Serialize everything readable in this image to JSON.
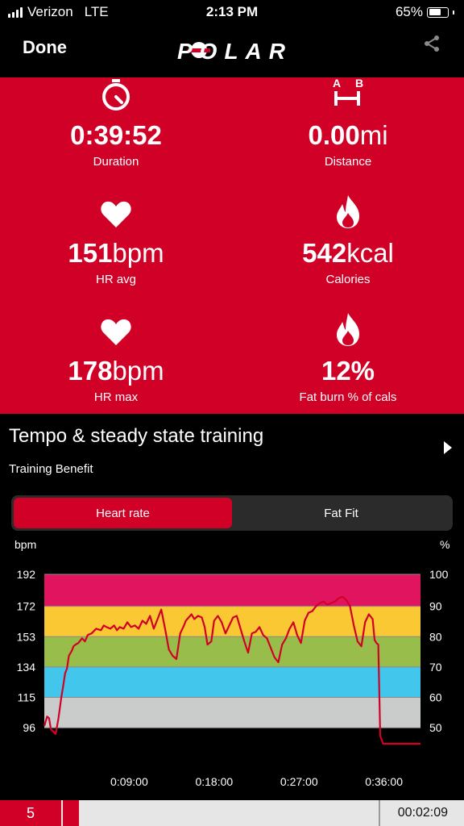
{
  "status_bar": {
    "carrier": "Verizon",
    "network": "LTE",
    "time": "2:13 PM",
    "battery": "65%",
    "battery_level": 0.65
  },
  "nav": {
    "done_label": "Done",
    "logo_text": "POLAR",
    "share_icon": "share-icon"
  },
  "summary": {
    "duration": {
      "value": "0:39:52",
      "unit": "",
      "label": "Duration",
      "icon": "stopwatch-icon"
    },
    "distance": {
      "value": "0.00",
      "unit": "mi",
      "label": "Distance",
      "icon": "a-b-distance-icon",
      "icon_a": "A",
      "icon_b": "B"
    },
    "hr_avg": {
      "value": "151",
      "unit": "bpm",
      "label": "HR avg",
      "icon": "heart-icon"
    },
    "calories": {
      "value": "542",
      "unit": "kcal",
      "label": "Calories",
      "icon": "flame-icon"
    },
    "hr_max": {
      "value": "178",
      "unit": "bpm",
      "label": "HR max",
      "icon": "heart-icon"
    },
    "fat_burn": {
      "value": "12%",
      "unit": "",
      "label": "Fat burn % of cals",
      "icon": "flame-icon"
    }
  },
  "training": {
    "title": "Tempo & steady state training",
    "subtitle": "Training Benefit"
  },
  "tabs": {
    "heart_rate": "Heart rate",
    "fat_fit": "Fat Fit",
    "active": "heart_rate"
  },
  "chart_data": {
    "type": "line",
    "left_axis_label": "bpm",
    "right_axis_label": "%",
    "left_ticks": [
      "192",
      "172",
      "153",
      "134",
      "115",
      "96"
    ],
    "right_ticks": [
      "100",
      "90",
      "80",
      "70",
      "60",
      "50"
    ],
    "x_ticks": [
      "0:09:00",
      "0:18:00",
      "0:27:00",
      "0:36:00"
    ],
    "x_tick_minutes": [
      9,
      18,
      27,
      36
    ],
    "x_range_minutes": [
      0,
      39.87
    ],
    "y_range_bpm": [
      85,
      192
    ],
    "zones": [
      {
        "from": 172,
        "to": 192,
        "color": "#e0145f"
      },
      {
        "from": 153,
        "to": 172,
        "color": "#f9c832"
      },
      {
        "from": 134,
        "to": 153,
        "color": "#98bd4a"
      },
      {
        "from": 115,
        "to": 134,
        "color": "#43c6ec"
      },
      {
        "from": 96,
        "to": 115,
        "color": "#c9cccb"
      }
    ],
    "line_color": "#d10027",
    "series": [
      {
        "x": [
          0,
          0.3,
          0.5,
          0.7,
          0.9,
          1.2,
          1.5,
          1.8,
          2.0,
          2.2,
          2.4,
          2.6,
          2.9,
          3.1,
          3.3,
          3.6,
          4.0,
          4.3,
          4.6,
          5.0,
          5.5,
          6.0,
          6.3,
          6.6,
          7.0,
          7.4,
          7.7,
          8.0,
          8.4,
          8.8,
          9.2,
          9.6,
          10.0,
          10.4,
          10.8,
          11.2,
          11.6,
          12.0,
          12.4,
          12.8,
          13.2,
          13.6,
          14.0,
          14.4,
          14.8,
          15.0,
          15.3,
          15.6,
          15.9,
          16.3,
          16.7,
          17.0,
          17.3,
          17.7,
          18.0,
          18.4,
          18.8,
          19.2,
          19.6,
          20.0,
          20.4,
          20.8,
          21.2,
          21.6,
          22.0,
          22.4,
          22.8,
          23.2,
          23.6,
          24.0,
          24.4,
          24.8,
          25.2,
          25.6,
          26.0,
          26.4,
          26.8,
          27.2,
          27.6,
          28.0,
          28.4,
          28.8,
          29.2,
          29.6,
          30.0,
          30.4,
          30.8,
          31.2,
          31.6,
          32.0,
          32.4,
          32.8,
          33.2,
          33.6,
          34.0,
          34.4,
          34.8,
          35.0,
          35.2,
          35.4,
          35.6,
          35.9,
          36.2,
          36.6,
          37.0,
          37.4,
          37.8,
          38.0,
          38.2,
          38.5,
          39.0,
          39.87
        ],
        "y": [
          97,
          103,
          102,
          95,
          94,
          92,
          102,
          115,
          122,
          130,
          133,
          141,
          144,
          147,
          148,
          149,
          152,
          150,
          154,
          155,
          158,
          157,
          160,
          159,
          158,
          160,
          157,
          159,
          158,
          162,
          159,
          160,
          158,
          163,
          161,
          166,
          158,
          164,
          170,
          158,
          145,
          141,
          139,
          155,
          160,
          163,
          165,
          167,
          164,
          166,
          165,
          159,
          148,
          150,
          163,
          166,
          162,
          155,
          160,
          165,
          166,
          158,
          150,
          143,
          155,
          156,
          159,
          154,
          152,
          146,
          140,
          137,
          148,
          152,
          158,
          162,
          154,
          149,
          163,
          168,
          169,
          172,
          174,
          175,
          173,
          174,
          175,
          177,
          178,
          176,
          172,
          160,
          150,
          147,
          162,
          167,
          164,
          151,
          149,
          148,
          91,
          86,
          86,
          86,
          86,
          86,
          86,
          86,
          86,
          86,
          86,
          86
        ]
      }
    ]
  },
  "bottom_bar": {
    "lap": "5",
    "elapsed": "00:02:09"
  }
}
